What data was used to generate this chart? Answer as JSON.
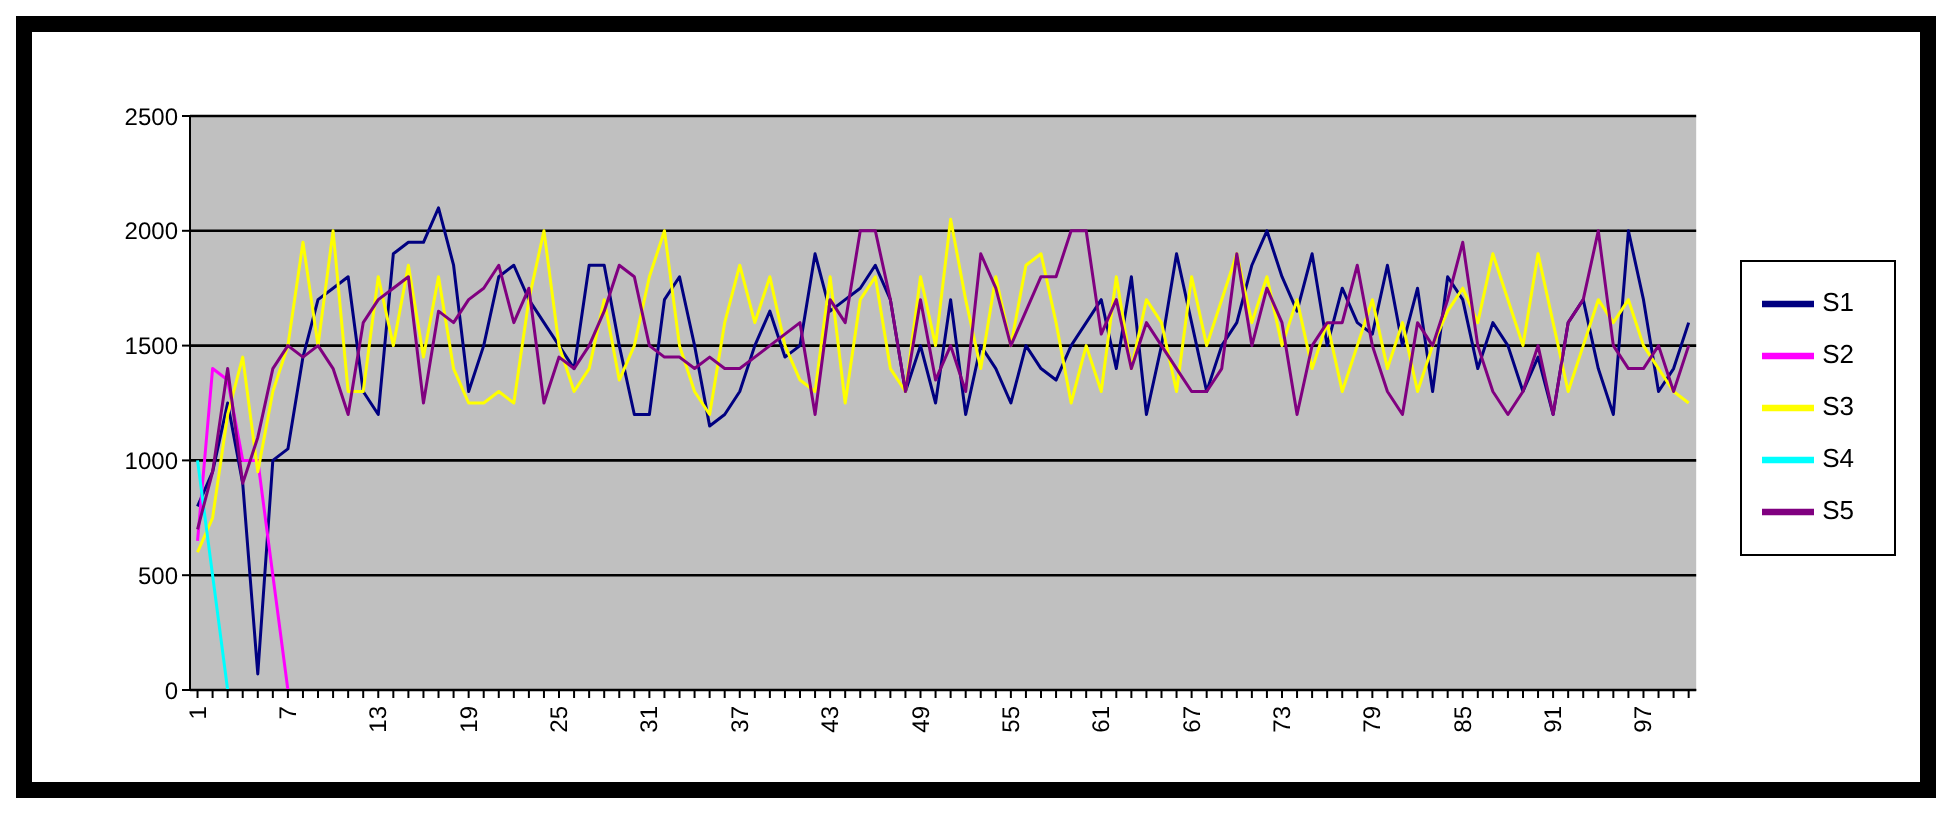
{
  "chart_data": {
    "type": "line",
    "categories": [
      "1",
      null,
      null,
      null,
      null,
      null,
      "7",
      null,
      null,
      null,
      null,
      null,
      "13",
      null,
      null,
      null,
      null,
      null,
      "19",
      null,
      null,
      null,
      null,
      null,
      "25",
      null,
      null,
      null,
      null,
      null,
      "31",
      null,
      null,
      null,
      null,
      null,
      "37",
      null,
      null,
      null,
      null,
      null,
      "43",
      null,
      null,
      null,
      null,
      null,
      "49",
      null,
      null,
      null,
      null,
      null,
      "55",
      null,
      null,
      null,
      null,
      null,
      "61",
      null,
      null,
      null,
      null,
      null,
      "67",
      null,
      null,
      null,
      null,
      null,
      "73",
      null,
      null,
      null,
      null,
      null,
      "79",
      null,
      null,
      null,
      null,
      null,
      "85",
      null,
      null,
      null,
      null,
      null,
      "91",
      null,
      null,
      null,
      null,
      null,
      "97",
      null,
      null,
      null
    ],
    "series": [
      {
        "name": "S1",
        "color": "#000080",
        "values": [
          800,
          950,
          1250,
          900,
          70,
          1000,
          1050,
          1450,
          1700,
          1750,
          1800,
          1300,
          1200,
          1900,
          1950,
          1950,
          2100,
          1850,
          1300,
          1500,
          1800,
          1850,
          1700,
          1600,
          1500,
          1400,
          1850,
          1850,
          1500,
          1200,
          1200,
          1700,
          1800,
          1500,
          1150,
          1200,
          1300,
          1500,
          1650,
          1450,
          1500,
          1900,
          1650,
          1700,
          1750,
          1850,
          1700,
          1300,
          1500,
          1250,
          1700,
          1200,
          1500,
          1400,
          1250,
          1500,
          1400,
          1350,
          1500,
          1600,
          1700,
          1400,
          1800,
          1200,
          1500,
          1900,
          1600,
          1300,
          1500,
          1600,
          1850,
          2000,
          1800,
          1650,
          1900,
          1500,
          1750,
          1600,
          1550,
          1850,
          1500,
          1750,
          1300,
          1800,
          1700,
          1400,
          1600,
          1500,
          1300,
          1450,
          1200,
          1600,
          1700,
          1400,
          1200,
          2000,
          1700,
          1300,
          1400,
          1600
        ]
      },
      {
        "name": "S2",
        "color": "#ff00ff",
        "values": [
          650,
          1400,
          1350,
          1000,
          1000,
          500,
          0,
          null,
          null,
          null,
          null,
          null,
          null,
          null,
          null,
          null,
          null,
          null,
          null,
          null,
          null,
          null,
          null,
          null,
          null,
          null,
          null,
          null,
          null,
          null,
          null,
          null,
          null,
          null,
          null,
          null,
          null,
          null,
          null,
          null,
          null,
          null,
          null,
          null,
          null,
          null,
          null,
          null,
          null,
          null,
          null,
          null,
          null,
          null,
          null,
          null,
          null,
          null,
          null,
          null,
          null,
          null,
          null,
          null,
          null,
          null,
          null,
          null,
          null,
          null,
          null,
          null,
          null,
          null,
          null,
          null,
          null,
          null,
          null,
          null,
          null,
          null,
          null,
          null,
          null,
          null,
          null,
          null,
          null,
          null,
          null,
          null,
          null,
          null,
          null,
          null,
          null,
          null,
          null,
          null
        ]
      },
      {
        "name": "S3",
        "color": "#ffff00",
        "values": [
          600,
          750,
          1200,
          1450,
          950,
          1300,
          1500,
          1950,
          1500,
          2000,
          1300,
          1300,
          1800,
          1500,
          1850,
          1450,
          1800,
          1400,
          1250,
          1250,
          1300,
          1250,
          1700,
          2000,
          1500,
          1300,
          1400,
          1700,
          1350,
          1500,
          1800,
          2000,
          1500,
          1300,
          1200,
          1600,
          1850,
          1600,
          1800,
          1500,
          1350,
          1300,
          1800,
          1250,
          1700,
          1800,
          1400,
          1300,
          1800,
          1500,
          2050,
          1700,
          1400,
          1800,
          1500,
          1850,
          1900,
          1600,
          1250,
          1500,
          1300,
          1800,
          1400,
          1700,
          1600,
          1300,
          1800,
          1500,
          1700,
          1900,
          1600,
          1800,
          1500,
          1700,
          1400,
          1600,
          1300,
          1500,
          1700,
          1400,
          1600,
          1300,
          1500,
          1650,
          1750,
          1600,
          1900,
          1700,
          1500,
          1900,
          1600,
          1300,
          1500,
          1700,
          1600,
          1700,
          1500,
          1400,
          1300,
          1250
        ]
      },
      {
        "name": "S4",
        "color": "#00ffff",
        "values": [
          1000,
          500,
          0,
          null,
          null,
          null,
          null,
          null,
          null,
          null,
          null,
          null,
          null,
          null,
          null,
          null,
          null,
          null,
          null,
          null,
          null,
          null,
          null,
          null,
          null,
          null,
          null,
          null,
          null,
          null,
          null,
          null,
          null,
          null,
          null,
          null,
          null,
          null,
          null,
          null,
          null,
          null,
          null,
          null,
          null,
          null,
          null,
          null,
          null,
          null,
          null,
          null,
          null,
          null,
          null,
          null,
          null,
          null,
          null,
          null,
          null,
          null,
          null,
          null,
          null,
          null,
          null,
          null,
          null,
          null,
          null,
          null,
          null,
          null,
          null,
          null,
          null,
          null,
          null,
          null,
          null,
          null,
          null,
          null,
          null,
          null,
          null,
          null,
          null,
          null,
          null,
          null,
          null,
          null,
          null,
          null,
          null,
          null,
          null,
          null
        ]
      },
      {
        "name": "S5",
        "color": "#800080",
        "values": [
          700,
          950,
          1400,
          900,
          1100,
          1400,
          1500,
          1450,
          1500,
          1400,
          1200,
          1600,
          1700,
          1750,
          1800,
          1250,
          1650,
          1600,
          1700,
          1750,
          1850,
          1600,
          1750,
          1250,
          1450,
          1400,
          1500,
          1650,
          1850,
          1800,
          1500,
          1450,
          1450,
          1400,
          1450,
          1400,
          1400,
          1450,
          1500,
          1550,
          1600,
          1200,
          1700,
          1600,
          2000,
          2000,
          1700,
          1300,
          1700,
          1350,
          1500,
          1300,
          1900,
          1750,
          1500,
          1650,
          1800,
          1800,
          2000,
          2000,
          1550,
          1700,
          1400,
          1600,
          1500,
          1400,
          1300,
          1300,
          1400,
          1900,
          1500,
          1750,
          1600,
          1200,
          1500,
          1600,
          1600,
          1850,
          1500,
          1300,
          1200,
          1600,
          1500,
          1700,
          1950,
          1500,
          1300,
          1200,
          1300,
          1500,
          1200,
          1600,
          1700,
          2000,
          1500,
          1400,
          1400,
          1500,
          1300,
          1500
        ]
      }
    ],
    "ylim": [
      0,
      2500
    ],
    "yticks": [
      0,
      500,
      1000,
      1500,
      2000,
      2500
    ],
    "grid": "y",
    "legend": "right",
    "marker": "none",
    "line_style": "solid"
  }
}
